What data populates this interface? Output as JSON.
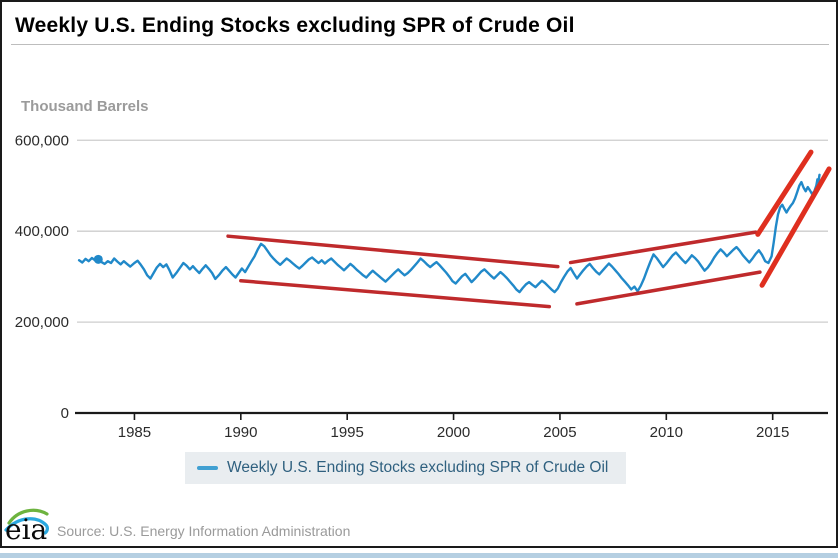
{
  "header": {
    "title": "Weekly U.S. Ending Stocks excluding SPR of Crude Oil"
  },
  "footer": {
    "source": "Source: U.S. Energy Information Administration",
    "logo_text": "eia"
  },
  "colors": {
    "series_blue": "#2189c9",
    "legend_dash_blue": "#41a0d2",
    "legend_text": "#2f607f",
    "legend_bg": "#e9edf0",
    "annotation_red_thin": "#bf2a2c",
    "annotation_red_steep": "#df2f1f",
    "grid": "#cdcdcd",
    "axis": "#1a1a1a",
    "tick_label": "#2b2b2b",
    "bottom_strip": "#b5cfe2",
    "logo_green": "#6db33f",
    "logo_blue": "#2aa8df"
  },
  "chart_data": {
    "type": "line",
    "title": "Weekly U.S. Ending Stocks excluding SPR of Crude Oil",
    "unit_label": "Thousand Barrels",
    "xlabel": "",
    "ylabel": "Thousand Barrels",
    "xlim": [
      1982.3,
      2017.6
    ],
    "ylim": [
      0,
      660000
    ],
    "grid": "horizontal",
    "x_ticks": [
      {
        "year": 1985,
        "label": "1985"
      },
      {
        "year": 1990,
        "label": "1990"
      },
      {
        "year": 1995,
        "label": "1995"
      },
      {
        "year": 2000,
        "label": "2000"
      },
      {
        "year": 2005,
        "label": "2005"
      },
      {
        "year": 2010,
        "label": "2010"
      },
      {
        "year": 2015,
        "label": "2015"
      }
    ],
    "y_ticks": [
      {
        "value": 0,
        "label": "0"
      },
      {
        "value": 200000,
        "label": "200,000"
      },
      {
        "value": 400000,
        "label": "400,000"
      },
      {
        "value": 600000,
        "label": "600,000"
      }
    ],
    "legend": {
      "position": "bottom",
      "label": "Weekly U.S. Ending Stocks excluding SPR of Crude Oil"
    },
    "start_marker": {
      "x": 1983.3,
      "y": 338000,
      "radius": 4.5
    },
    "annotations": [
      {
        "name": "upper-declining-channel-line",
        "x1": 1989.4,
        "y1": 389000,
        "x2": 2004.9,
        "y2": 322000,
        "width": 3.5,
        "color_key": "annotation_red_thin"
      },
      {
        "name": "lower-declining-channel-line",
        "x1": 1990.0,
        "y1": 291000,
        "x2": 2004.5,
        "y2": 234000,
        "width": 3.5,
        "color_key": "annotation_red_thin"
      },
      {
        "name": "upper-rising-channel-line",
        "x1": 2005.5,
        "y1": 331000,
        "x2": 2014.2,
        "y2": 398000,
        "width": 3.5,
        "color_key": "annotation_red_thin"
      },
      {
        "name": "lower-rising-channel-line",
        "x1": 2005.8,
        "y1": 240000,
        "x2": 2014.4,
        "y2": 310000,
        "width": 3.5,
        "color_key": "annotation_red_thin"
      },
      {
        "name": "upper-steep-channel-line",
        "x1": 2014.3,
        "y1": 393000,
        "x2": 2016.8,
        "y2": 574000,
        "width": 5,
        "color_key": "annotation_red_steep"
      },
      {
        "name": "lower-steep-channel-line",
        "x1": 2014.5,
        "y1": 281000,
        "x2": 2017.65,
        "y2": 537000,
        "width": 5,
        "color_key": "annotation_red_steep"
      }
    ],
    "series": [
      {
        "name": "Weekly U.S. Ending Stocks excluding SPR of Crude Oil",
        "color_key": "series_blue",
        "line_width": 2.4,
        "points": [
          [
            1982.4,
            336000
          ],
          [
            1982.55,
            331000
          ],
          [
            1982.7,
            339000
          ],
          [
            1982.85,
            334000
          ],
          [
            1983.0,
            341000
          ],
          [
            1983.15,
            336000
          ],
          [
            1983.3,
            338000
          ],
          [
            1983.45,
            332000
          ],
          [
            1983.6,
            328000
          ],
          [
            1983.75,
            334000
          ],
          [
            1983.9,
            330000
          ],
          [
            1984.05,
            340000
          ],
          [
            1984.2,
            333000
          ],
          [
            1984.35,
            327000
          ],
          [
            1984.5,
            334000
          ],
          [
            1984.65,
            328000
          ],
          [
            1984.8,
            322000
          ],
          [
            1985.0,
            330000
          ],
          [
            1985.15,
            335000
          ],
          [
            1985.3,
            326000
          ],
          [
            1985.45,
            316000
          ],
          [
            1985.6,
            303000
          ],
          [
            1985.75,
            296000
          ],
          [
            1985.9,
            308000
          ],
          [
            1986.05,
            320000
          ],
          [
            1986.2,
            328000
          ],
          [
            1986.35,
            321000
          ],
          [
            1986.5,
            327000
          ],
          [
            1986.65,
            314000
          ],
          [
            1986.8,
            298000
          ],
          [
            1987.0,
            310000
          ],
          [
            1987.15,
            320000
          ],
          [
            1987.3,
            330000
          ],
          [
            1987.45,
            324000
          ],
          [
            1987.6,
            316000
          ],
          [
            1987.75,
            323000
          ],
          [
            1987.9,
            315000
          ],
          [
            1988.05,
            308000
          ],
          [
            1988.2,
            317000
          ],
          [
            1988.35,
            325000
          ],
          [
            1988.5,
            317000
          ],
          [
            1988.65,
            308000
          ],
          [
            1988.8,
            295000
          ],
          [
            1989.0,
            305000
          ],
          [
            1989.15,
            314000
          ],
          [
            1989.3,
            321000
          ],
          [
            1989.45,
            313000
          ],
          [
            1989.6,
            305000
          ],
          [
            1989.75,
            298000
          ],
          [
            1989.9,
            308000
          ],
          [
            1990.05,
            318000
          ],
          [
            1990.2,
            310000
          ],
          [
            1990.35,
            322000
          ],
          [
            1990.5,
            334000
          ],
          [
            1990.65,
            345000
          ],
          [
            1990.8,
            360000
          ],
          [
            1990.95,
            372000
          ],
          [
            1991.1,
            367000
          ],
          [
            1991.25,
            357000
          ],
          [
            1991.4,
            347000
          ],
          [
            1991.55,
            339000
          ],
          [
            1991.7,
            332000
          ],
          [
            1991.85,
            326000
          ],
          [
            1992.0,
            333000
          ],
          [
            1992.15,
            340000
          ],
          [
            1992.3,
            335000
          ],
          [
            1992.45,
            329000
          ],
          [
            1992.6,
            323000
          ],
          [
            1992.75,
            318000
          ],
          [
            1992.9,
            324000
          ],
          [
            1993.05,
            331000
          ],
          [
            1993.2,
            338000
          ],
          [
            1993.35,
            342000
          ],
          [
            1993.5,
            336000
          ],
          [
            1993.65,
            330000
          ],
          [
            1993.8,
            336000
          ],
          [
            1993.95,
            329000
          ],
          [
            1994.1,
            335000
          ],
          [
            1994.25,
            340000
          ],
          [
            1994.4,
            333000
          ],
          [
            1994.55,
            326000
          ],
          [
            1994.7,
            320000
          ],
          [
            1994.85,
            314000
          ],
          [
            1995.0,
            321000
          ],
          [
            1995.15,
            328000
          ],
          [
            1995.3,
            322000
          ],
          [
            1995.45,
            315000
          ],
          [
            1995.6,
            309000
          ],
          [
            1995.75,
            303000
          ],
          [
            1995.9,
            298000
          ],
          [
            1996.05,
            306000
          ],
          [
            1996.2,
            313000
          ],
          [
            1996.35,
            307000
          ],
          [
            1996.5,
            301000
          ],
          [
            1996.65,
            295000
          ],
          [
            1996.8,
            289000
          ],
          [
            1996.95,
            296000
          ],
          [
            1997.1,
            303000
          ],
          [
            1997.25,
            310000
          ],
          [
            1997.4,
            316000
          ],
          [
            1997.55,
            309000
          ],
          [
            1997.7,
            303000
          ],
          [
            1997.85,
            308000
          ],
          [
            1998.0,
            315000
          ],
          [
            1998.15,
            323000
          ],
          [
            1998.3,
            331000
          ],
          [
            1998.45,
            340000
          ],
          [
            1998.6,
            334000
          ],
          [
            1998.75,
            327000
          ],
          [
            1998.9,
            321000
          ],
          [
            1999.05,
            327000
          ],
          [
            1999.2,
            332000
          ],
          [
            1999.35,
            325000
          ],
          [
            1999.5,
            317000
          ],
          [
            1999.65,
            309000
          ],
          [
            1999.8,
            300000
          ],
          [
            1999.95,
            290000
          ],
          [
            2000.1,
            285000
          ],
          [
            2000.25,
            293000
          ],
          [
            2000.4,
            301000
          ],
          [
            2000.55,
            306000
          ],
          [
            2000.7,
            297000
          ],
          [
            2000.85,
            288000
          ],
          [
            2001.0,
            295000
          ],
          [
            2001.15,
            303000
          ],
          [
            2001.3,
            311000
          ],
          [
            2001.45,
            316000
          ],
          [
            2001.6,
            309000
          ],
          [
            2001.75,
            302000
          ],
          [
            2001.9,
            296000
          ],
          [
            2002.05,
            303000
          ],
          [
            2002.2,
            310000
          ],
          [
            2002.35,
            304000
          ],
          [
            2002.5,
            297000
          ],
          [
            2002.65,
            289000
          ],
          [
            2002.8,
            281000
          ],
          [
            2002.95,
            272000
          ],
          [
            2003.1,
            266000
          ],
          [
            2003.25,
            275000
          ],
          [
            2003.4,
            283000
          ],
          [
            2003.55,
            288000
          ],
          [
            2003.7,
            282000
          ],
          [
            2003.85,
            277000
          ],
          [
            2004.0,
            284000
          ],
          [
            2004.15,
            291000
          ],
          [
            2004.3,
            286000
          ],
          [
            2004.45,
            279000
          ],
          [
            2004.6,
            272000
          ],
          [
            2004.75,
            266000
          ],
          [
            2004.9,
            274000
          ],
          [
            2005.05,
            288000
          ],
          [
            2005.2,
            300000
          ],
          [
            2005.35,
            311000
          ],
          [
            2005.5,
            319000
          ],
          [
            2005.65,
            307000
          ],
          [
            2005.8,
            296000
          ],
          [
            2005.95,
            305000
          ],
          [
            2006.1,
            314000
          ],
          [
            2006.25,
            322000
          ],
          [
            2006.4,
            328000
          ],
          [
            2006.55,
            319000
          ],
          [
            2006.7,
            311000
          ],
          [
            2006.85,
            305000
          ],
          [
            2007.0,
            313000
          ],
          [
            2007.15,
            321000
          ],
          [
            2007.3,
            329000
          ],
          [
            2007.45,
            322000
          ],
          [
            2007.6,
            314000
          ],
          [
            2007.75,
            306000
          ],
          [
            2007.9,
            297000
          ],
          [
            2008.05,
            289000
          ],
          [
            2008.2,
            281000
          ],
          [
            2008.35,
            272000
          ],
          [
            2008.5,
            278000
          ],
          [
            2008.65,
            268000
          ],
          [
            2008.8,
            280000
          ],
          [
            2008.95,
            296000
          ],
          [
            2009.1,
            315000
          ],
          [
            2009.25,
            333000
          ],
          [
            2009.4,
            349000
          ],
          [
            2009.55,
            341000
          ],
          [
            2009.7,
            331000
          ],
          [
            2009.85,
            321000
          ],
          [
            2010.0,
            329000
          ],
          [
            2010.15,
            338000
          ],
          [
            2010.3,
            347000
          ],
          [
            2010.45,
            353000
          ],
          [
            2010.6,
            345000
          ],
          [
            2010.75,
            337000
          ],
          [
            2010.9,
            330000
          ],
          [
            2011.05,
            338000
          ],
          [
            2011.2,
            347000
          ],
          [
            2011.35,
            341000
          ],
          [
            2011.5,
            333000
          ],
          [
            2011.65,
            323000
          ],
          [
            2011.8,
            313000
          ],
          [
            2011.95,
            320000
          ],
          [
            2012.1,
            330000
          ],
          [
            2012.25,
            342000
          ],
          [
            2012.4,
            352000
          ],
          [
            2012.55,
            360000
          ],
          [
            2012.7,
            353000
          ],
          [
            2012.85,
            345000
          ],
          [
            2013.0,
            352000
          ],
          [
            2013.15,
            359000
          ],
          [
            2013.3,
            365000
          ],
          [
            2013.45,
            357000
          ],
          [
            2013.6,
            347000
          ],
          [
            2013.75,
            339000
          ],
          [
            2013.9,
            331000
          ],
          [
            2014.05,
            340000
          ],
          [
            2014.2,
            350000
          ],
          [
            2014.35,
            358000
          ],
          [
            2014.5,
            348000
          ],
          [
            2014.65,
            334000
          ],
          [
            2014.8,
            330000
          ],
          [
            2014.95,
            345000
          ],
          [
            2015.05,
            375000
          ],
          [
            2015.15,
            410000
          ],
          [
            2015.25,
            437000
          ],
          [
            2015.35,
            452000
          ],
          [
            2015.45,
            458000
          ],
          [
            2015.55,
            449000
          ],
          [
            2015.65,
            441000
          ],
          [
            2015.75,
            449000
          ],
          [
            2015.85,
            456000
          ],
          [
            2015.95,
            462000
          ],
          [
            2016.05,
            472000
          ],
          [
            2016.15,
            486000
          ],
          [
            2016.25,
            500000
          ],
          [
            2016.35,
            508000
          ],
          [
            2016.45,
            496000
          ],
          [
            2016.55,
            488000
          ],
          [
            2016.65,
            497000
          ],
          [
            2016.75,
            490000
          ],
          [
            2016.85,
            482000
          ],
          [
            2016.95,
            487000
          ],
          [
            2017.05,
            500000
          ],
          [
            2017.1,
            514000
          ],
          [
            2017.15,
            508000
          ],
          [
            2017.2,
            524000
          ]
        ]
      }
    ]
  }
}
